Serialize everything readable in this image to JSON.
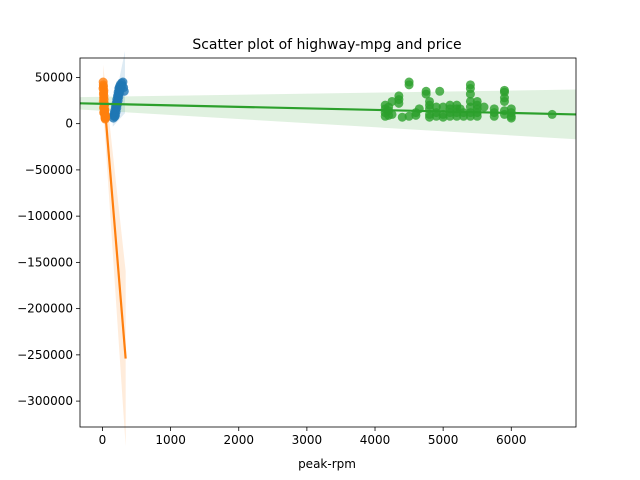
{
  "chart_data": {
    "type": "scatter",
    "title": "Scatter plot of highway-mpg and price",
    "xlabel": "peak-rpm",
    "ylabel": "",
    "xlim": [
      -330,
      6950
    ],
    "ylim": [
      -328000,
      71000
    ],
    "xticks": [
      0,
      1000,
      2000,
      3000,
      4000,
      5000,
      6000
    ],
    "yticks": [
      50000,
      0,
      -50000,
      -100000,
      -150000,
      -200000,
      -250000,
      -300000
    ],
    "grid": false,
    "colors": {
      "series1": "#1f77b4",
      "series2": "#ff7f0e",
      "series3": "#2ca02c"
    },
    "series": [
      {
        "points": [
          [
            160,
            6000
          ],
          [
            165,
            8500
          ],
          [
            170,
            11000
          ],
          [
            175,
            9500
          ],
          [
            180,
            14000
          ],
          [
            185,
            12000
          ],
          [
            190,
            18000
          ],
          [
            195,
            16000
          ],
          [
            200,
            22000
          ],
          [
            205,
            20000
          ],
          [
            210,
            26000
          ],
          [
            215,
            24000
          ],
          [
            220,
            30000
          ],
          [
            225,
            28000
          ],
          [
            230,
            34000
          ],
          [
            235,
            32000
          ],
          [
            240,
            38000
          ],
          [
            245,
            36000
          ],
          [
            250,
            40000
          ],
          [
            255,
            38000
          ],
          [
            260,
            42000
          ],
          [
            270,
            40000
          ],
          [
            280,
            44000
          ],
          [
            290,
            41000
          ],
          [
            300,
            45000
          ],
          [
            310,
            39000
          ],
          [
            320,
            35000
          ],
          [
            180,
            7500
          ],
          [
            190,
            9000
          ],
          [
            200,
            13000
          ],
          [
            210,
            17000
          ],
          [
            220,
            21000
          ],
          [
            230,
            25000
          ],
          [
            240,
            29000
          ],
          [
            250,
            33000
          ],
          [
            260,
            37000
          ]
        ],
        "fit": [
          [
            150,
            5000
          ],
          [
            330,
            45000
          ]
        ]
      },
      {
        "points": [
          [
            10,
            45000
          ],
          [
            12,
            42000
          ],
          [
            15,
            40000
          ],
          [
            8,
            38000
          ],
          [
            20,
            36000
          ],
          [
            18,
            34000
          ],
          [
            14,
            32000
          ],
          [
            22,
            30000
          ],
          [
            16,
            28000
          ],
          [
            24,
            26000
          ],
          [
            12,
            24000
          ],
          [
            26,
            22000
          ],
          [
            30,
            20000
          ],
          [
            20,
            18000
          ],
          [
            28,
            16000
          ],
          [
            32,
            14000
          ],
          [
            18,
            12000
          ],
          [
            34,
            10000
          ],
          [
            36,
            8000
          ],
          [
            38,
            6000
          ],
          [
            40,
            5000
          ],
          [
            42,
            7000
          ],
          [
            44,
            9000
          ],
          [
            25,
            11000
          ],
          [
            30,
            13000
          ],
          [
            35,
            15000
          ],
          [
            16,
            17000
          ],
          [
            22,
            19000
          ],
          [
            28,
            21000
          ],
          [
            46,
            6500
          ]
        ],
        "fit": [
          [
            10,
            40000
          ],
          [
            340,
            -254000
          ]
        ]
      },
      {
        "points": [
          [
            4150,
            8000
          ],
          [
            4150,
            12000
          ],
          [
            4150,
            16000
          ],
          [
            4150,
            20000
          ],
          [
            4200,
            9000
          ],
          [
            4200,
            14000
          ],
          [
            4200,
            18000
          ],
          [
            4250,
            24000
          ],
          [
            4250,
            10000
          ],
          [
            4350,
            30000
          ],
          [
            4350,
            26000
          ],
          [
            4350,
            22000
          ],
          [
            4400,
            7000
          ],
          [
            4500,
            45000
          ],
          [
            4500,
            42000
          ],
          [
            4500,
            8000
          ],
          [
            4600,
            12000
          ],
          [
            4600,
            9000
          ],
          [
            4650,
            16000
          ],
          [
            4750,
            35000
          ],
          [
            4750,
            32000
          ],
          [
            4800,
            24000
          ],
          [
            4800,
            20000
          ],
          [
            4800,
            16000
          ],
          [
            4800,
            10000
          ],
          [
            4800,
            7000
          ],
          [
            4900,
            8000
          ],
          [
            4900,
            12000
          ],
          [
            4900,
            18000
          ],
          [
            4950,
            35000
          ],
          [
            5000,
            18000
          ],
          [
            5000,
            10000
          ],
          [
            5000,
            7000
          ],
          [
            5100,
            20000
          ],
          [
            5100,
            16000
          ],
          [
            5100,
            12000
          ],
          [
            5100,
            8000
          ],
          [
            5200,
            20000
          ],
          [
            5200,
            16000
          ],
          [
            5200,
            12000
          ],
          [
            5200,
            8000
          ],
          [
            5250,
            16000
          ],
          [
            5300,
            12000
          ],
          [
            5300,
            8000
          ],
          [
            5400,
            42000
          ],
          [
            5400,
            38000
          ],
          [
            5400,
            32000
          ],
          [
            5400,
            24000
          ],
          [
            5400,
            18000
          ],
          [
            5400,
            12000
          ],
          [
            5400,
            8000
          ],
          [
            5500,
            24000
          ],
          [
            5500,
            20000
          ],
          [
            5500,
            16000
          ],
          [
            5500,
            12000
          ],
          [
            5500,
            8000
          ],
          [
            5600,
            18000
          ],
          [
            5750,
            16000
          ],
          [
            5750,
            12000
          ],
          [
            5750,
            8000
          ],
          [
            5900,
            36000
          ],
          [
            5900,
            34000
          ],
          [
            5900,
            28000
          ],
          [
            5900,
            24000
          ],
          [
            5900,
            14000
          ],
          [
            5900,
            10000
          ],
          [
            6000,
            16000
          ],
          [
            6000,
            12000
          ],
          [
            6000,
            8000
          ],
          [
            6000,
            6000
          ],
          [
            6600,
            10000
          ]
        ],
        "fit": [
          [
            -330,
            22000
          ],
          [
            6950,
            10000
          ]
        ]
      }
    ]
  }
}
